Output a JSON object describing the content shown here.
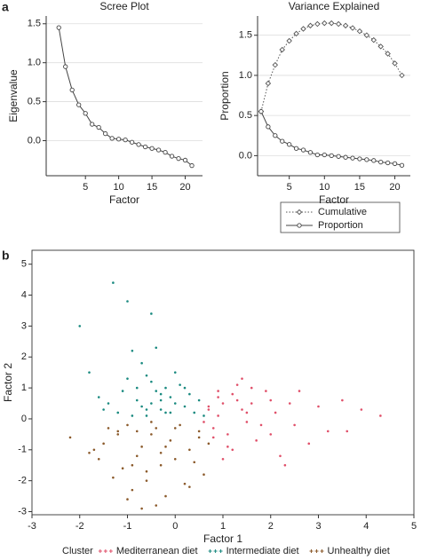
{
  "panel_labels": [
    "a",
    "b"
  ],
  "chart_data": [
    {
      "type": "line",
      "title": "Scree Plot",
      "x_label": "Factor",
      "y_label": "Eigenvalue",
      "x": [
        1,
        2,
        3,
        4,
        5,
        6,
        7,
        8,
        9,
        10,
        11,
        12,
        13,
        14,
        15,
        16,
        17,
        18,
        19,
        20,
        21
      ],
      "values": [
        1.45,
        0.95,
        0.65,
        0.46,
        0.35,
        0.21,
        0.17,
        0.09,
        0.03,
        0.02,
        0.01,
        -0.02,
        -0.05,
        -0.08,
        -0.1,
        -0.12,
        -0.15,
        -0.2,
        -0.23,
        -0.25,
        -0.32
      ],
      "color": "#444",
      "marker": "circle",
      "xlim": [
        -0.9,
        22.6
      ],
      "ylim": [
        -0.45,
        1.6
      ],
      "xticks": [
        5,
        10,
        15,
        20
      ],
      "yticks": [
        {
          "value": 0,
          "label": "0.0"
        },
        0.5,
        {
          "value": 1,
          "label": "1.0"
        },
        1.5
      ],
      "grid": true
    },
    {
      "type": "line",
      "title": "Variance Explained",
      "x_label": "Factor",
      "y_label": "Proportion",
      "x": [
        1,
        2,
        3,
        4,
        5,
        6,
        7,
        8,
        9,
        10,
        11,
        12,
        13,
        14,
        15,
        16,
        17,
        18,
        19,
        20,
        21
      ],
      "series": [
        {
          "name": "Cumulative",
          "color": "#555",
          "style": "dotted",
          "marker": "diamond",
          "values": [
            0.55,
            0.9,
            1.13,
            1.32,
            1.43,
            1.52,
            1.58,
            1.62,
            1.64,
            1.65,
            1.65,
            1.64,
            1.62,
            1.59,
            1.55,
            1.5,
            1.44,
            1.36,
            1.27,
            1.15,
            1.0
          ]
        },
        {
          "name": "Proportion",
          "color": "#444",
          "style": "solid",
          "marker": "circle",
          "values": [
            0.55,
            0.36,
            0.25,
            0.18,
            0.14,
            0.09,
            0.07,
            0.04,
            0.01,
            0.01,
            0.0,
            -0.01,
            -0.02,
            -0.03,
            -0.04,
            -0.05,
            -0.06,
            -0.08,
            -0.09,
            -0.1,
            -0.12
          ]
        }
      ],
      "legend": "bottom",
      "xlim": [
        0.5,
        22.2
      ],
      "ylim": [
        -0.25,
        1.74
      ],
      "xticks": [
        5,
        10,
        15,
        20
      ],
      "yticks": [
        {
          "value": 0,
          "label": "0.0"
        },
        0.5,
        {
          "value": 1,
          "label": "1.0"
        },
        1.5
      ],
      "grid": true
    },
    {
      "type": "scatter",
      "x_label": "Factor 1",
      "y_label": "Factor 2",
      "legend_title": "Cluster",
      "legend": "bottom",
      "series": [
        {
          "name": "Mediterranean diet",
          "color": "#e0506a",
          "x": [
            1.0,
            1.2,
            1.5,
            0.8,
            2.0,
            2.5,
            1.3,
            0.9,
            1.7,
            3.0,
            3.5,
            4.3,
            2.2,
            1.1,
            0.7,
            1.9,
            2.8,
            1.4,
            0.6,
            1.6,
            2.4,
            3.2,
            1.0,
            1.8,
            0.9,
            2.1,
            1.2,
            0.8,
            1.5,
            2.6,
            3.6,
            1.3,
            0.7,
            1.1,
            2.0,
            1.6,
            0.9,
            2.3,
            1.4,
            3.9
          ],
          "values": [
            0.5,
            0.8,
            0.2,
            -0.3,
            0.6,
            -0.2,
            1.1,
            0.1,
            -0.7,
            0.4,
            0.6,
            0.1,
            -1.2,
            -0.5,
            0.3,
            0.9,
            -0.8,
            0.3,
            -0.1,
            1.0,
            0.5,
            -0.4,
            -1.3,
            -0.2,
            0.7,
            0.2,
            -1.0,
            -0.6,
            -0.1,
            0.9,
            -0.4,
            0.6,
            0.4,
            -0.9,
            -0.5,
            0.5,
            0.9,
            -1.5,
            1.3,
            0.3
          ]
        },
        {
          "name": "Intermediate diet",
          "color": "#1a8a80",
          "x": [
            -1.3,
            -1.0,
            -0.5,
            -0.9,
            -1.8,
            -0.4,
            -0.7,
            -0.2,
            0.0,
            -0.3,
            -0.6,
            -1.1,
            -0.8,
            0.2,
            0.4,
            -0.5,
            -0.1,
            -1.4,
            -0.9,
            0.1,
            -0.3,
            -0.6,
            -0.2,
            0.5,
            -1.2,
            -0.4,
            0.0,
            -0.7,
            0.3,
            -1.6,
            -2.0,
            -0.5,
            -1.0,
            -0.8,
            0.6,
            -0.1,
            -0.3,
            -1.5,
            0.2,
            -0.6
          ],
          "values": [
            4.4,
            3.8,
            3.4,
            2.2,
            1.5,
            2.3,
            1.8,
            1.0,
            0.5,
            0.8,
            0.3,
            0.9,
            0.6,
            0.4,
            0.2,
            1.2,
            0.7,
            0.5,
            0.1,
            1.1,
            0.3,
            1.4,
            0.2,
            0.6,
            0.2,
            0.9,
            1.5,
            0.4,
            0.8,
            0.7,
            3.0,
            0.5,
            1.3,
            1.0,
            0.1,
            0.2,
            0.6,
            0.3,
            1.0,
            0.1
          ]
        },
        {
          "name": "Unhealthy diet",
          "color": "#8b5a2b",
          "x": [
            -1.0,
            -0.5,
            -1.5,
            0.0,
            0.3,
            -0.8,
            -1.2,
            -0.3,
            0.5,
            -0.6,
            -1.8,
            -2.2,
            -0.2,
            0.6,
            -1.1,
            -0.7,
            0.1,
            -0.4,
            -1.4,
            0.4,
            -0.9,
            -0.1,
            -1.6,
            0.2,
            -0.5,
            -1.3,
            0.7,
            -0.8,
            -0.3,
            -1.0,
            -0.6,
            0.0,
            -1.2,
            -0.2,
            0.3,
            -0.9,
            -0.4,
            -1.7,
            0.5,
            -0.7
          ],
          "values": [
            -0.2,
            -0.5,
            -0.8,
            -0.3,
            -1.0,
            -1.2,
            -0.4,
            -1.5,
            -0.6,
            -2.0,
            -1.1,
            -0.6,
            -2.5,
            -1.8,
            -1.6,
            -0.9,
            -0.2,
            -2.8,
            -0.3,
            -1.4,
            -2.3,
            -0.7,
            -1.3,
            -2.1,
            -0.1,
            -1.9,
            -0.8,
            -0.4,
            -1.1,
            -2.6,
            -1.7,
            -1.3,
            -0.5,
            -0.9,
            -2.2,
            -1.5,
            -0.3,
            -1.0,
            -0.4,
            -2.9
          ]
        }
      ],
      "xlim": [
        -3,
        5
      ],
      "ylim": [
        -3.1,
        5.45
      ],
      "xticks": [
        -3,
        -2,
        -1,
        0,
        1,
        2,
        3,
        4,
        5
      ],
      "yticks": [
        -3,
        -2,
        -1,
        0,
        1,
        2,
        3,
        4,
        5
      ],
      "grid": false
    }
  ]
}
